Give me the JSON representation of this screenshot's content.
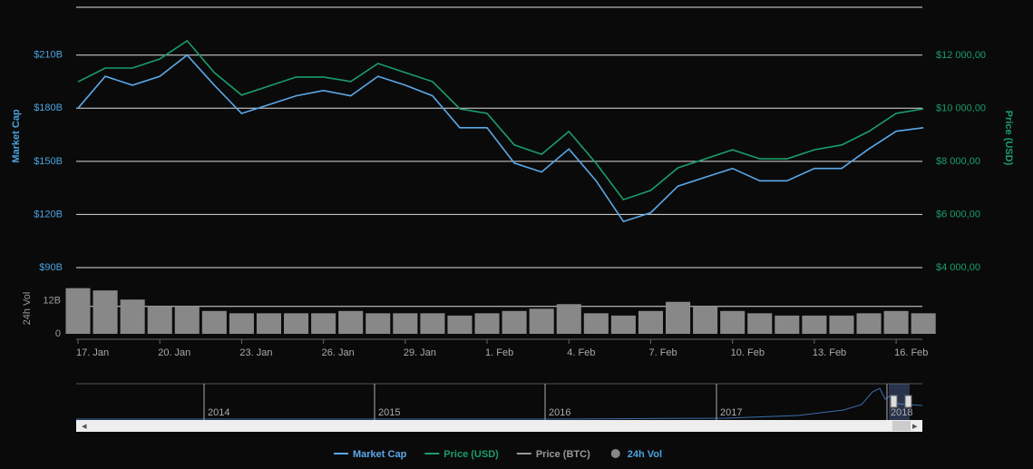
{
  "chart_data": {
    "type": "line",
    "categories": [
      "17. Jan",
      null,
      null,
      "20. Jan",
      null,
      null,
      "23. Jan",
      null,
      null,
      "26. Jan",
      null,
      null,
      "29. Jan",
      null,
      null,
      "1. Feb",
      null,
      null,
      "4. Feb",
      null,
      null,
      "7. Feb",
      null,
      null,
      "10. Feb",
      null,
      null,
      "13. Feb",
      null,
      null,
      "16. Feb",
      null
    ],
    "y_label": "Market Cap",
    "y2_label": "Price (USD)",
    "vol_label": "24h Vol",
    "ylim": [
      90,
      237
    ],
    "yticks": [
      {
        "value": 90,
        "label": "$90B"
      },
      {
        "value": 120,
        "label": "$120B"
      },
      {
        "value": 150,
        "label": "$150B"
      },
      {
        "value": 180,
        "label": "$180B"
      },
      {
        "value": 210,
        "label": "$210B"
      }
    ],
    "y2lim": [
      4000,
      13810
    ],
    "y2ticks": [
      {
        "value": 4000,
        "label": "$4 000,00"
      },
      {
        "value": 6000,
        "label": "$6 000,00"
      },
      {
        "value": 8000,
        "label": "$8 000,00"
      },
      {
        "value": 10000,
        "label": "$10 000,00"
      },
      {
        "value": 12000,
        "label": "$12 000,00"
      }
    ],
    "vol_ylim": [
      0,
      27
    ],
    "vol_yticks": [
      0,
      {
        "value": 12,
        "label": "12B"
      }
    ],
    "series": [
      {
        "name": "Market Cap",
        "color": "#5ba8e8",
        "axis": "y",
        "values": [
          180,
          198,
          193,
          198,
          210,
          193,
          177,
          182,
          187,
          190,
          187,
          198,
          193,
          187,
          169,
          169,
          149,
          144,
          157,
          139,
          116,
          121,
          136,
          141,
          146,
          139,
          139,
          146,
          146,
          157,
          167,
          169
        ]
      },
      {
        "name": "Price (USD)",
        "color": "#1a9e6a",
        "axis": "y2",
        "values": [
          11000,
          11520,
          11520,
          11860,
          12550,
          11350,
          10500,
          10840,
          11180,
          11180,
          11010,
          11690,
          11350,
          11010,
          9980,
          9810,
          8620,
          8270,
          9130,
          7930,
          6560,
          6910,
          7760,
          8100,
          8440,
          8100,
          8100,
          8440,
          8620,
          9130,
          9810,
          9980
        ]
      },
      {
        "name": "Price (BTC)",
        "color": "#999999",
        "visible": false
      },
      {
        "name": "24h Vol",
        "color": "#888888",
        "axis": "vol",
        "type": "bar",
        "values": [
          20,
          19,
          15,
          12,
          12,
          10,
          9,
          9,
          9,
          9,
          10,
          9,
          9,
          9,
          8,
          9,
          10,
          11,
          13,
          9,
          8,
          10,
          14,
          12,
          10,
          9,
          8,
          8,
          8,
          9,
          10,
          9
        ]
      }
    ],
    "navigator": {
      "labels": [
        "2014",
        "2015",
        "2016",
        "2017",
        "2018"
      ]
    }
  }
}
